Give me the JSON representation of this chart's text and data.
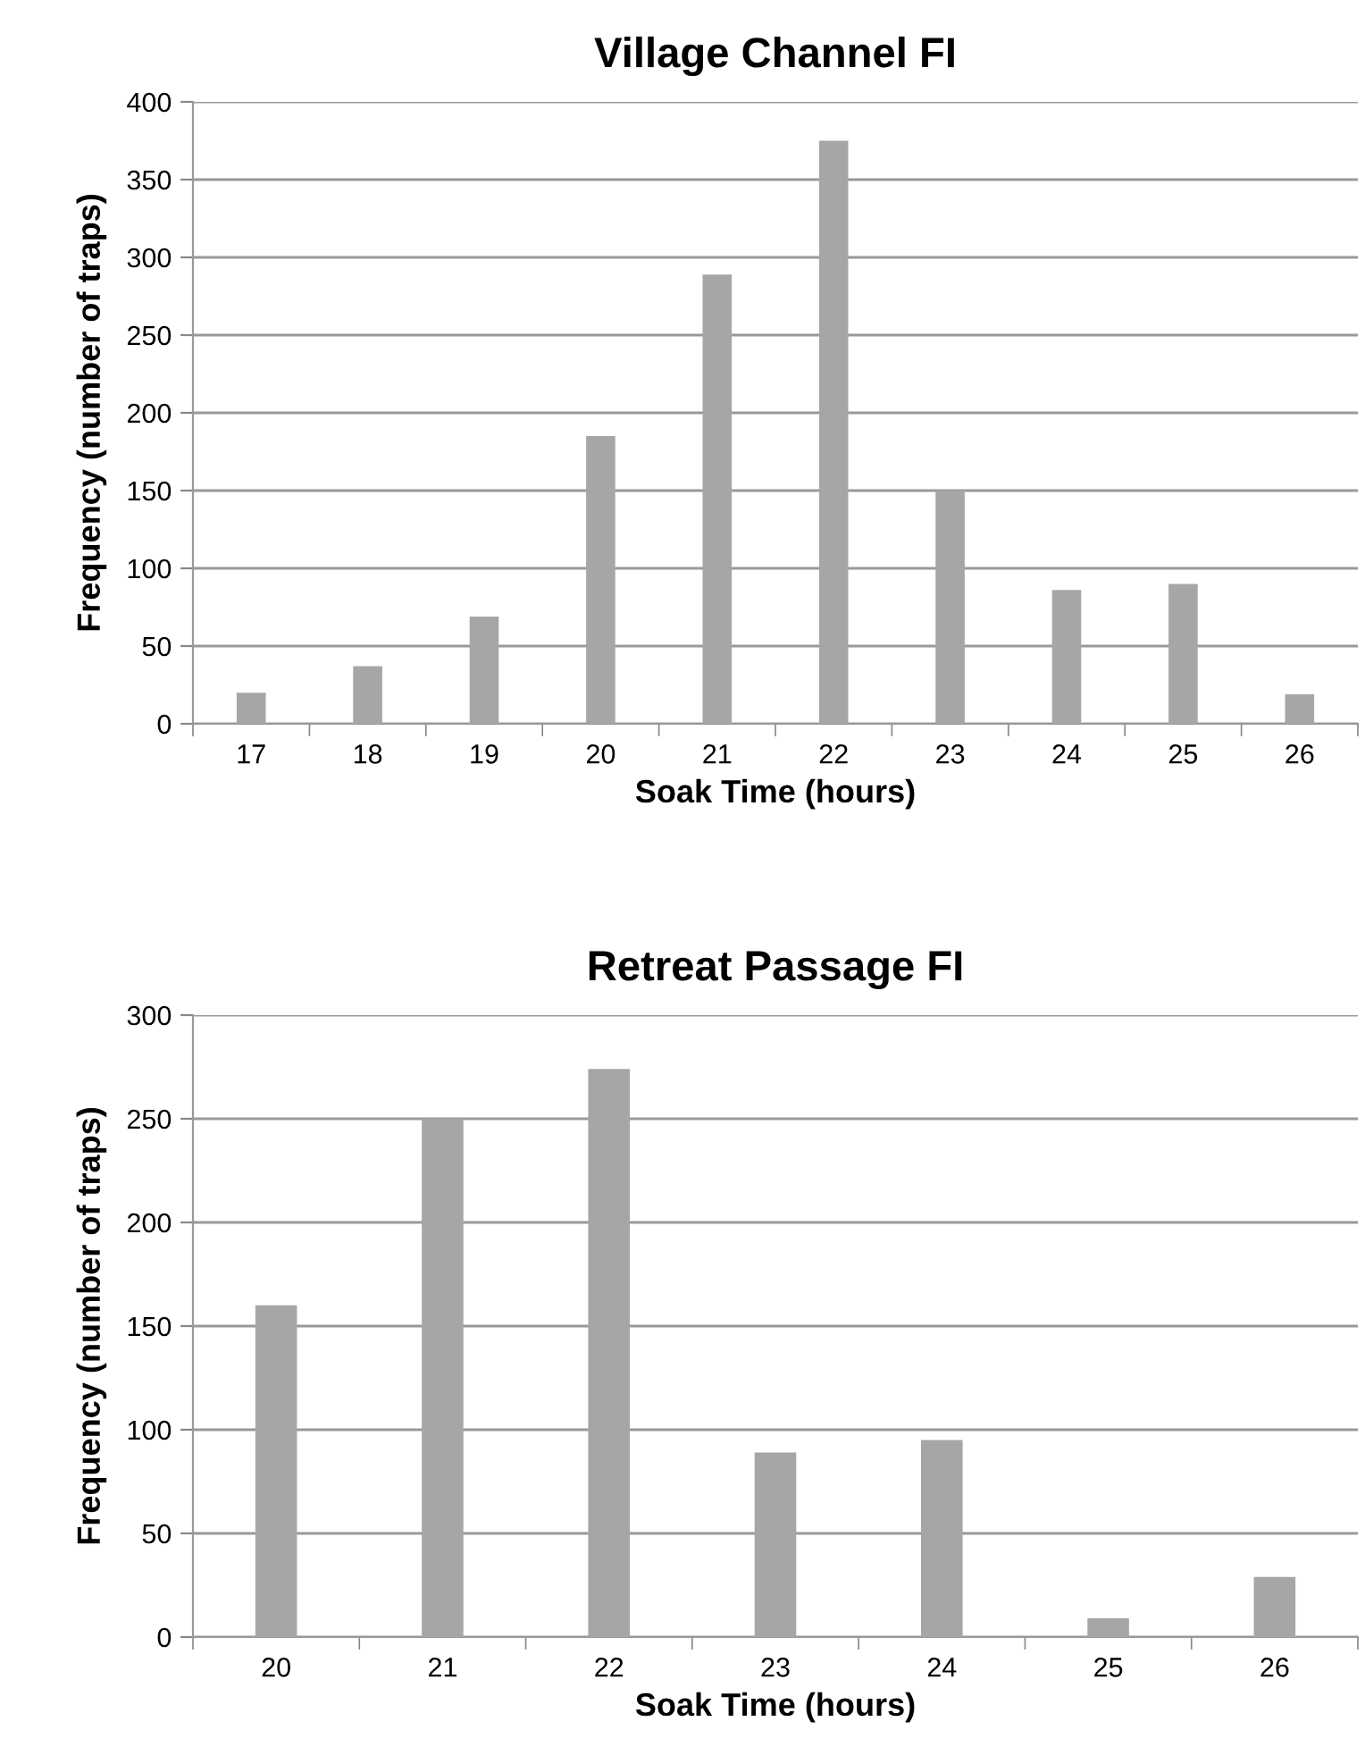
{
  "chart_data": [
    {
      "type": "bar",
      "title": "Village Channel FI",
      "xlabel": "Soak Time (hours)",
      "ylabel": "Frequency (number of traps)",
      "categories": [
        "17",
        "18",
        "19",
        "20",
        "21",
        "22",
        "23",
        "24",
        "25",
        "26"
      ],
      "values": [
        20,
        37,
        69,
        185,
        289,
        375,
        150,
        86,
        90,
        19
      ],
      "color": "#a6a6a6",
      "ylim": [
        0,
        400
      ],
      "yticks": [
        0,
        50,
        100,
        150,
        200,
        250,
        300,
        350,
        400
      ],
      "grid": "y"
    },
    {
      "type": "bar",
      "title": "Retreat Passage FI",
      "xlabel": "Soak Time (hours)",
      "ylabel": "Frequency (number of traps)",
      "categories": [
        "20",
        "21",
        "22",
        "23",
        "24",
        "25",
        "26"
      ],
      "values": [
        160,
        250,
        274,
        89,
        95,
        9,
        29
      ],
      "color": "#a6a6a6",
      "ylim": [
        0,
        300
      ],
      "yticks": [
        0,
        50,
        100,
        150,
        200,
        250,
        300
      ],
      "grid": "y"
    }
  ]
}
